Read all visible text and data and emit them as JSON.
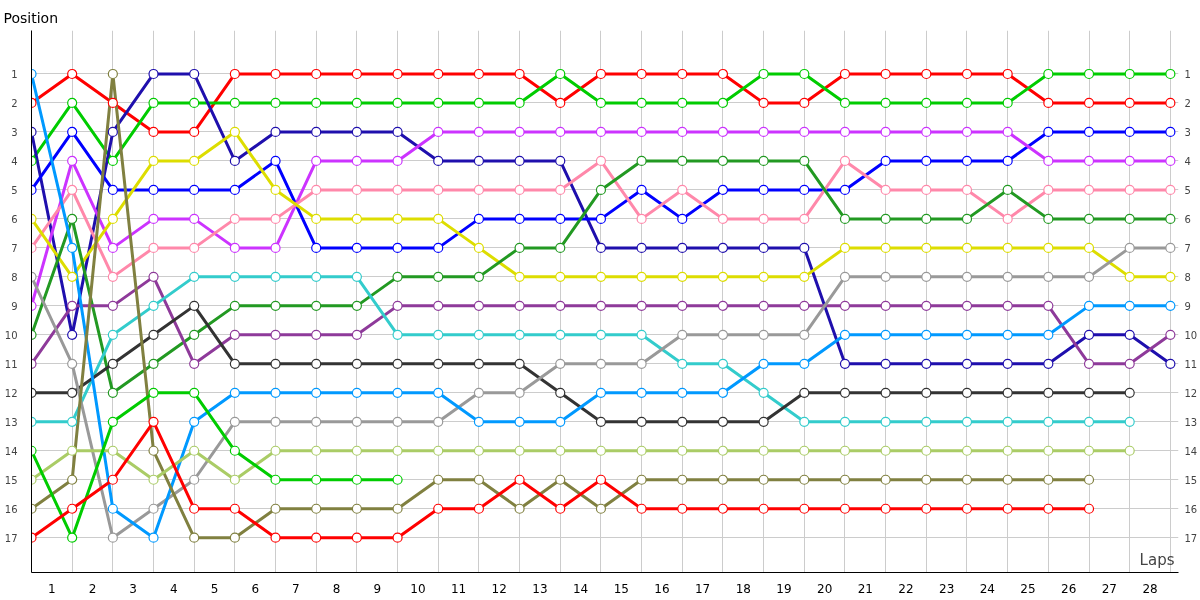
{
  "chart_data": {
    "type": "line",
    "xlabel": "Laps",
    "ylabel": "Position",
    "x": [
      0,
      1,
      2,
      3,
      4,
      5,
      6,
      7,
      8,
      9,
      10,
      11,
      12,
      13,
      14,
      15,
      16,
      17,
      18,
      19,
      20,
      21,
      22,
      23,
      24,
      25,
      26,
      27,
      28
    ],
    "series": [
      {
        "color": "#ff0000",
        "values": [
          2,
          1,
          2,
          3,
          3,
          1,
          1,
          1,
          1,
          1,
          1,
          1,
          1,
          2,
          1,
          1,
          1,
          1,
          2,
          2,
          1,
          1,
          1,
          1,
          1,
          2,
          2,
          2,
          2
        ]
      },
      {
        "color": "#00cc00",
        "values": [
          4,
          2,
          4,
          2,
          2,
          2,
          2,
          2,
          2,
          2,
          2,
          2,
          2,
          1,
          2,
          2,
          2,
          2,
          1,
          1,
          2,
          2,
          2,
          2,
          2,
          1,
          1,
          1,
          1
        ]
      },
      {
        "color": "#1f0fad",
        "values": [
          3,
          10,
          3,
          1,
          1,
          4,
          3,
          3,
          3,
          3,
          4,
          4,
          4,
          4,
          7,
          7,
          7,
          7,
          7,
          7,
          11,
          11,
          11,
          11,
          11,
          11,
          10,
          10,
          11
        ]
      },
      {
        "color": "#0000ff",
        "values": [
          5,
          3,
          5,
          5,
          5,
          5,
          4,
          7,
          7,
          7,
          7,
          6,
          6,
          6,
          6,
          5,
          6,
          5,
          5,
          5,
          5,
          4,
          4,
          4,
          4,
          3,
          3,
          3,
          3
        ]
      },
      {
        "color": "#cc33ff",
        "values": [
          9,
          4,
          7,
          6,
          6,
          7,
          7,
          4,
          4,
          4,
          3,
          3,
          3,
          3,
          3,
          3,
          3,
          3,
          3,
          3,
          3,
          3,
          3,
          3,
          3,
          4,
          4,
          4,
          4
        ]
      },
      {
        "color": "#ff88aa",
        "values": [
          7,
          5,
          8,
          7,
          7,
          6,
          6,
          5,
          5,
          5,
          5,
          5,
          5,
          5,
          4,
          6,
          5,
          6,
          6,
          6,
          4,
          5,
          5,
          5,
          6,
          5,
          5,
          5,
          5
        ]
      },
      {
        "color": "#dddd00",
        "values": [
          6,
          8,
          6,
          4,
          4,
          3,
          5,
          6,
          6,
          6,
          6,
          7,
          8,
          8,
          8,
          8,
          8,
          8,
          8,
          8,
          7,
          7,
          7,
          7,
          7,
          7,
          7,
          8,
          8
        ]
      },
      {
        "color": "#229922",
        "values": [
          10,
          6,
          12,
          11,
          10,
          9,
          9,
          9,
          9,
          8,
          8,
          8,
          7,
          7,
          5,
          4,
          4,
          4,
          4,
          4,
          6,
          6,
          6,
          6,
          5,
          6,
          6,
          6,
          6
        ]
      },
      {
        "color": "#8e3a9a",
        "values": [
          11,
          9,
          9,
          8,
          11,
          10,
          10,
          10,
          10,
          9,
          9,
          9,
          9,
          9,
          9,
          9,
          9,
          9,
          9,
          9,
          9,
          9,
          9,
          9,
          9,
          9,
          11,
          11,
          10
        ]
      },
      {
        "color": "#33cccc",
        "values": [
          13,
          13,
          10,
          9,
          8,
          8,
          8,
          8,
          8,
          10,
          10,
          10,
          10,
          10,
          10,
          10,
          11,
          11,
          12,
          13,
          13,
          13,
          13,
          13,
          13,
          13,
          13,
          13,
          null
        ]
      },
      {
        "color": "#333333",
        "values": [
          12,
          12,
          11,
          10,
          9,
          11,
          11,
          11,
          11,
          11,
          11,
          11,
          11,
          12,
          13,
          13,
          13,
          13,
          13,
          12,
          12,
          12,
          12,
          12,
          12,
          12,
          12,
          12,
          null
        ]
      },
      {
        "color": "#999999",
        "values": [
          8,
          11,
          17,
          16,
          15,
          13,
          13,
          13,
          13,
          13,
          13,
          12,
          12,
          11,
          11,
          11,
          10,
          10,
          10,
          10,
          8,
          8,
          8,
          8,
          8,
          8,
          8,
          7,
          7
        ]
      },
      {
        "color": "#0099ff",
        "values": [
          1,
          7,
          16,
          17,
          13,
          12,
          12,
          12,
          12,
          12,
          12,
          13,
          13,
          13,
          12,
          12,
          12,
          12,
          11,
          11,
          10,
          10,
          10,
          10,
          10,
          10,
          9,
          9,
          9
        ]
      },
      {
        "color": "#808040",
        "values": [
          16,
          15,
          1,
          14,
          17,
          17,
          16,
          16,
          16,
          16,
          15,
          15,
          16,
          15,
          16,
          15,
          15,
          15,
          15,
          15,
          15,
          15,
          15,
          15,
          15,
          15,
          15,
          null,
          null
        ]
      },
      {
        "color": "#aacc66",
        "values": [
          15,
          14,
          14,
          15,
          14,
          15,
          14,
          14,
          14,
          14,
          14,
          14,
          14,
          14,
          14,
          14,
          14,
          14,
          14,
          14,
          14,
          14,
          14,
          14,
          14,
          14,
          14,
          14,
          null
        ]
      },
      {
        "color": "#00cc00",
        "values": [
          14,
          17,
          13,
          12,
          12,
          14,
          15,
          15,
          15,
          15,
          null,
          null,
          null,
          null,
          null,
          null,
          null,
          null,
          null,
          null,
          null,
          null,
          null,
          null,
          null,
          null,
          null,
          null,
          null
        ]
      },
      {
        "color": "#ff0000",
        "values": [
          17,
          16,
          15,
          13,
          16,
          16,
          17,
          17,
          17,
          17,
          16,
          16,
          15,
          16,
          15,
          16,
          16,
          16,
          16,
          16,
          16,
          16,
          16,
          16,
          16,
          16,
          16,
          null,
          null
        ]
      }
    ],
    "xlim": [
      0,
      28.2
    ],
    "xticks": [
      {
        "value": 0.5,
        "label": "1"
      },
      {
        "value": 1.5,
        "label": "2"
      },
      {
        "value": 2.5,
        "label": "3"
      },
      {
        "value": 3.5,
        "label": "4"
      },
      {
        "value": 4.5,
        "label": "5"
      },
      {
        "value": 5.5,
        "label": "6"
      },
      {
        "value": 6.5,
        "label": "7"
      },
      {
        "value": 7.5,
        "label": "8"
      },
      {
        "value": 8.5,
        "label": "9"
      },
      {
        "value": 9.5,
        "label": "10"
      },
      {
        "value": 10.5,
        "label": "11"
      },
      {
        "value": 11.5,
        "label": "12"
      },
      {
        "value": 12.5,
        "label": "13"
      },
      {
        "value": 13.5,
        "label": "14"
      },
      {
        "value": 14.5,
        "label": "15"
      },
      {
        "value": 15.5,
        "label": "16"
      },
      {
        "value": 16.5,
        "label": "17"
      },
      {
        "value": 17.5,
        "label": "18"
      },
      {
        "value": 18.5,
        "label": "19"
      },
      {
        "value": 19.5,
        "label": "20"
      },
      {
        "value": 20.5,
        "label": "21"
      },
      {
        "value": 21.5,
        "label": "22"
      },
      {
        "value": 22.5,
        "label": "23"
      },
      {
        "value": 23.5,
        "label": "24"
      },
      {
        "value": 24.5,
        "label": "25"
      },
      {
        "value": 25.5,
        "label": "26"
      },
      {
        "value": 26.5,
        "label": "27"
      },
      {
        "value": 27.5,
        "label": "28"
      },
      {
        "value": 1,
        "label": null
      },
      {
        "value": 2,
        "label": null
      },
      {
        "value": 3,
        "label": null
      },
      {
        "value": 4,
        "label": null
      },
      {
        "value": 5,
        "label": null
      },
      {
        "value": 6,
        "label": null
      },
      {
        "value": 7,
        "label": null
      },
      {
        "value": 8,
        "label": null
      },
      {
        "value": 9,
        "label": null
      },
      {
        "value": 10,
        "label": null
      },
      {
        "value": 11,
        "label": null
      },
      {
        "value": 12,
        "label": null
      },
      {
        "value": 13,
        "label": null
      },
      {
        "value": 14,
        "label": null
      },
      {
        "value": 15,
        "label": null
      },
      {
        "value": 16,
        "label": null
      },
      {
        "value": 17,
        "label": null
      },
      {
        "value": 18,
        "label": null
      },
      {
        "value": 19,
        "label": null
      },
      {
        "value": 20,
        "label": null
      },
      {
        "value": 21,
        "label": null
      },
      {
        "value": 22,
        "label": null
      },
      {
        "value": 23,
        "label": null
      },
      {
        "value": 24,
        "label": null
      },
      {
        "value": 25,
        "label": null
      },
      {
        "value": 26,
        "label": null
      },
      {
        "value": 27,
        "label": null
      },
      {
        "value": 28,
        "label": null
      }
    ],
    "ylim": [
      18.2,
      -0.5
    ],
    "yticks": [
      1,
      2,
      3,
      4,
      5,
      6,
      7,
      8,
      9,
      10,
      11,
      12,
      13,
      14,
      15,
      16,
      17
    ],
    "y2lim": [
      18.2,
      -0.5
    ],
    "y2ticks": [
      1,
      2,
      3,
      4,
      5,
      6,
      7,
      8,
      9,
      10,
      11,
      12,
      13,
      14,
      15,
      16,
      17
    ],
    "grid": true,
    "marker": "circle"
  }
}
